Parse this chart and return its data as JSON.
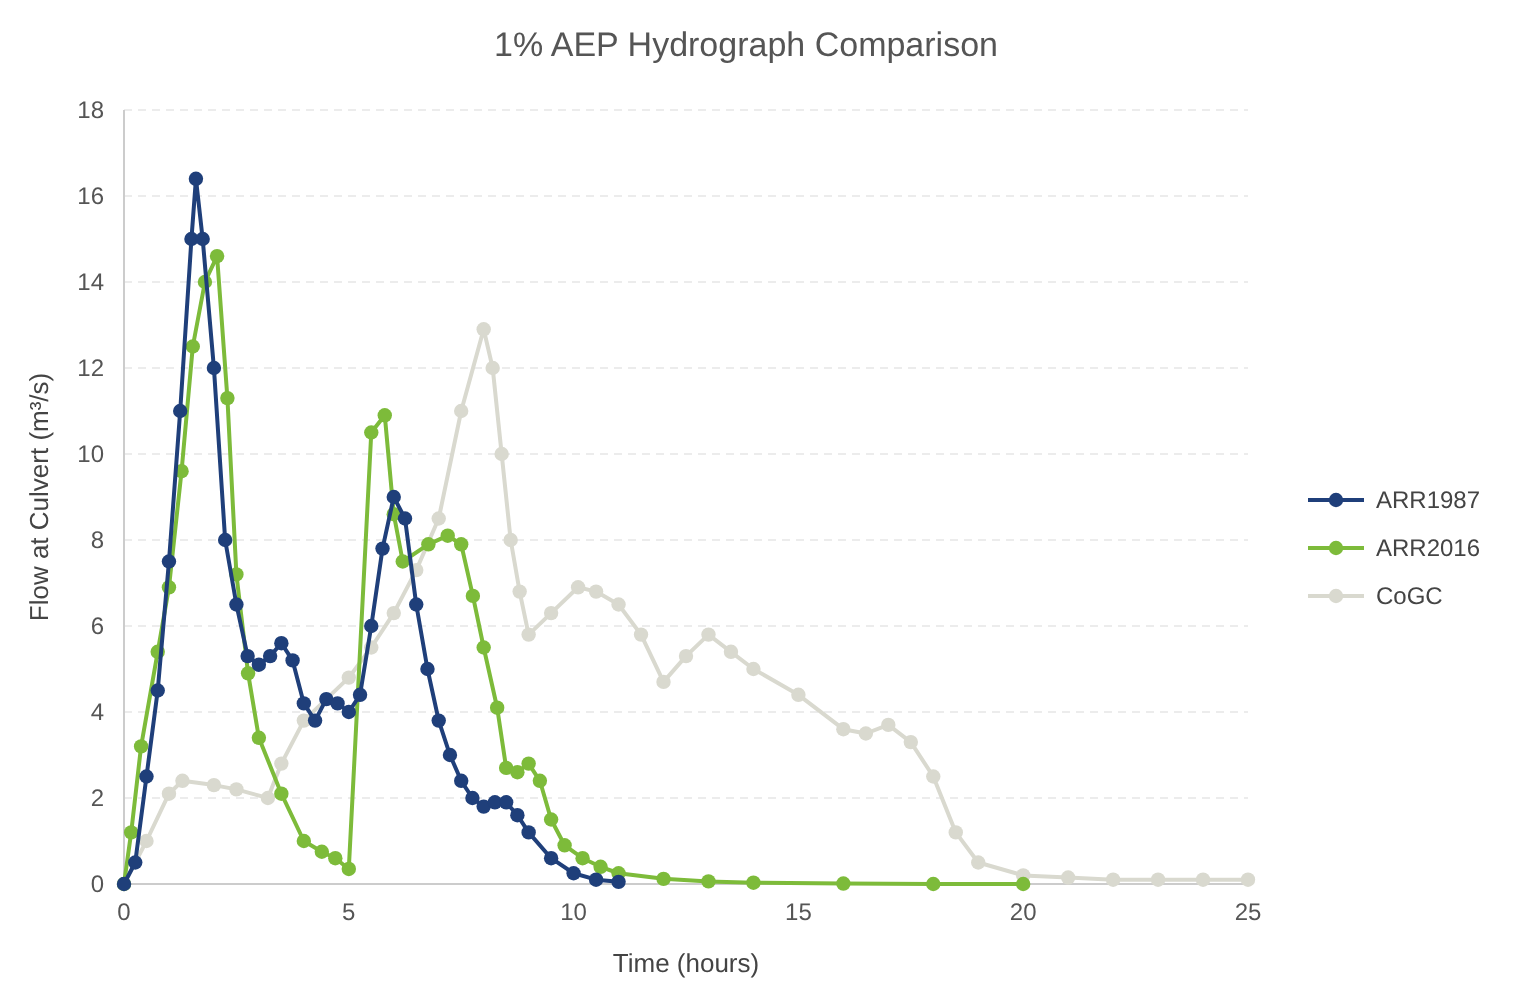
{
  "chart_data": {
    "type": "line",
    "title": "1% AEP Hydrograph Comparison",
    "xlabel": "Time (hours)",
    "ylabel": "Flow at Culvert (m³/s)",
    "xlim": [
      0,
      25
    ],
    "xticks": [
      0,
      5,
      10,
      15,
      20,
      25
    ],
    "ylim": [
      0,
      18
    ],
    "yticks": [
      0,
      2,
      4,
      6,
      8,
      10,
      12,
      14,
      16,
      18
    ],
    "grid": "y",
    "legend": "right",
    "marker": "circle",
    "line_style": "solid",
    "series": [
      {
        "name": "ARR1987",
        "color": "#1f3f7a",
        "x": [
          0,
          0.25,
          0.5,
          0.75,
          1,
          1.25,
          1.5,
          1.6,
          1.75,
          2,
          2.25,
          2.5,
          2.75,
          3,
          3.25,
          3.5,
          3.75,
          4,
          4.25,
          4.5,
          4.75,
          5,
          5.25,
          5.5,
          5.75,
          6,
          6.25,
          6.5,
          6.75,
          7,
          7.25,
          7.5,
          7.75,
          8,
          8.25,
          8.5,
          8.75,
          9,
          9.5,
          10,
          10.5,
          11
        ],
        "values": [
          0,
          0.5,
          2.5,
          4.5,
          7.5,
          11,
          15,
          16.4,
          15,
          12,
          8,
          6.5,
          5.3,
          5.1,
          5.3,
          5.6,
          5.2,
          4.2,
          3.8,
          4.3,
          4.2,
          4,
          4.4,
          6,
          7.8,
          9,
          8.5,
          6.5,
          5,
          3.8,
          3,
          2.4,
          2,
          1.8,
          1.9,
          1.9,
          1.6,
          1.2,
          0.6,
          0.25,
          0.1,
          0.05
        ]
      },
      {
        "name": "ARR2016",
        "color": "#7dbb3a",
        "x": [
          0,
          0.16,
          0.38,
          0.75,
          1,
          1.28,
          1.53,
          1.8,
          2.07,
          2.3,
          2.5,
          2.76,
          3,
          3.5,
          4,
          4.4,
          4.7,
          5,
          5.5,
          5.8,
          6,
          6.2,
          6.77,
          7.2,
          7.5,
          7.76,
          8,
          8.3,
          8.5,
          8.75,
          9,
          9.25,
          9.5,
          9.8,
          10.2,
          10.6,
          11,
          12,
          13,
          14,
          16,
          18,
          20
        ],
        "values": [
          0,
          1.2,
          3.2,
          5.4,
          6.9,
          9.6,
          12.5,
          14,
          14.6,
          11.3,
          7.2,
          4.9,
          3.4,
          2.1,
          1,
          0.75,
          0.6,
          0.35,
          10.5,
          10.9,
          8.6,
          7.5,
          7.9,
          8.1,
          7.9,
          6.7,
          5.5,
          4.1,
          2.7,
          2.6,
          2.8,
          2.4,
          1.5,
          0.9,
          0.6,
          0.4,
          0.25,
          0.12,
          0.06,
          0.03,
          0.01,
          0,
          0
        ]
      },
      {
        "name": "CoGC",
        "color": "#d9d9cf",
        "x": [
          0,
          0.5,
          1,
          1.3,
          2,
          2.5,
          3.2,
          3.5,
          4,
          5,
          5.5,
          6,
          6.5,
          7,
          7.5,
          8,
          8.2,
          8.4,
          8.6,
          8.8,
          9,
          9.5,
          10.1,
          10.5,
          11,
          11.5,
          12,
          12.5,
          13,
          13.5,
          14,
          15,
          16,
          16.5,
          17,
          17.5,
          18,
          18.5,
          19,
          20,
          21,
          22,
          23,
          24,
          25
        ],
        "values": [
          0,
          1,
          2.1,
          2.4,
          2.3,
          2.2,
          2,
          2.8,
          3.8,
          4.8,
          5.5,
          6.3,
          7.3,
          8.5,
          11,
          12.9,
          12,
          10,
          8,
          6.8,
          5.8,
          6.3,
          6.9,
          6.8,
          6.5,
          5.8,
          4.7,
          5.3,
          5.8,
          5.4,
          5,
          4.4,
          3.6,
          3.5,
          3.7,
          3.3,
          2.5,
          1.2,
          0.5,
          0.2,
          0.15,
          0.1,
          0.1,
          0.1,
          0.1
        ]
      }
    ]
  }
}
